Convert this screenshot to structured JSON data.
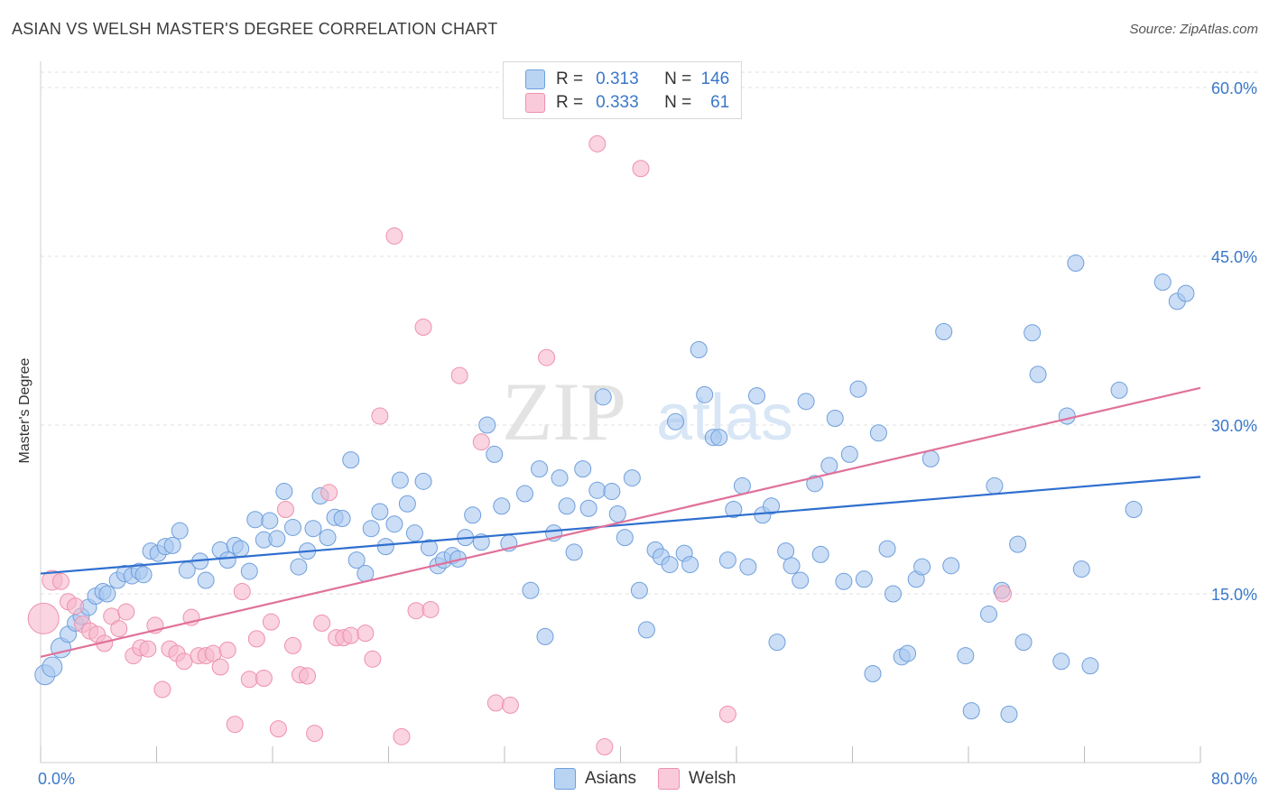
{
  "title": "ASIAN VS WELSH MASTER'S DEGREE CORRELATION CHART",
  "source": "Source: ZipAtlas.com",
  "watermark": {
    "zip": "ZIP",
    "atlas": "atlas"
  },
  "legend": {
    "rows": [
      {
        "r_label": "R =",
        "r_value": "0.313",
        "n_label": "N =",
        "n_value": "146"
      },
      {
        "r_label": "R =",
        "r_value": "0.333",
        "n_label": "N =",
        "n_value": "61"
      }
    ]
  },
  "colors": {
    "asian_fill": "#a9c8f0",
    "asian_stroke": "#6f9fdc",
    "asian_line": "#2f6fcf",
    "welsh_fill": "#f6b8cb",
    "welsh_stroke": "#ee91ae",
    "welsh_line": "#e0719a",
    "axis_text": "#3a78c9",
    "grid": "#e2e2e2"
  },
  "chart_data": {
    "type": "scatter",
    "title": "ASIAN VS WELSH MASTER'S DEGREE CORRELATION CHART",
    "xlabel": "",
    "ylabel": "Master's Degree",
    "xlim": [
      0,
      80
    ],
    "ylim": [
      0,
      60
    ],
    "x_tick_labels": [
      "0.0%",
      "80.0%"
    ],
    "y_tick_labels": [
      "15.0%",
      "30.0%",
      "45.0%",
      "60.0%"
    ],
    "y_ticks": [
      15,
      30,
      45,
      60
    ],
    "grid": true,
    "legend_position": "top-center",
    "series": [
      {
        "name": "Asians",
        "r": 0.313,
        "n": 146,
        "trend": {
          "x": [
            0,
            80
          ],
          "y": [
            16.8,
            25.4
          ]
        },
        "points": [
          [
            0.3,
            7.8
          ],
          [
            0.8,
            8.5
          ],
          [
            1.4,
            10.2
          ],
          [
            1.9,
            11.4
          ],
          [
            2.4,
            12.4
          ],
          [
            2.8,
            13.0
          ],
          [
            3.3,
            13.8
          ],
          [
            3.8,
            14.8
          ],
          [
            4.3,
            15.2
          ],
          [
            4.6,
            15.0
          ],
          [
            5.3,
            16.2
          ],
          [
            5.8,
            16.8
          ],
          [
            6.3,
            16.6
          ],
          [
            6.8,
            17.0
          ],
          [
            7.1,
            16.7
          ],
          [
            7.6,
            18.8
          ],
          [
            8.1,
            18.6
          ],
          [
            8.6,
            19.2
          ],
          [
            9.1,
            19.3
          ],
          [
            9.6,
            20.6
          ],
          [
            10.1,
            17.1
          ],
          [
            11.0,
            17.9
          ],
          [
            11.4,
            16.2
          ],
          [
            12.4,
            18.9
          ],
          [
            12.9,
            18.0
          ],
          [
            13.4,
            19.3
          ],
          [
            13.8,
            19.0
          ],
          [
            14.4,
            17.0
          ],
          [
            14.8,
            21.6
          ],
          [
            15.4,
            19.8
          ],
          [
            15.8,
            21.5
          ],
          [
            16.3,
            19.9
          ],
          [
            16.8,
            24.1
          ],
          [
            17.4,
            20.9
          ],
          [
            17.8,
            17.4
          ],
          [
            18.4,
            18.8
          ],
          [
            18.8,
            20.8
          ],
          [
            19.3,
            23.7
          ],
          [
            19.8,
            20.0
          ],
          [
            20.3,
            21.8
          ],
          [
            20.8,
            21.7
          ],
          [
            21.4,
            26.9
          ],
          [
            21.8,
            18.0
          ],
          [
            22.4,
            16.8
          ],
          [
            22.8,
            20.8
          ],
          [
            23.4,
            22.3
          ],
          [
            23.8,
            19.2
          ],
          [
            24.4,
            21.2
          ],
          [
            24.8,
            25.1
          ],
          [
            25.3,
            23.0
          ],
          [
            25.8,
            20.4
          ],
          [
            26.4,
            25.0
          ],
          [
            26.8,
            19.1
          ],
          [
            27.4,
            17.5
          ],
          [
            27.8,
            18.0
          ],
          [
            28.4,
            18.4
          ],
          [
            28.8,
            18.1
          ],
          [
            29.3,
            20.0
          ],
          [
            29.8,
            22.0
          ],
          [
            30.4,
            19.6
          ],
          [
            30.8,
            30.0
          ],
          [
            31.3,
            27.4
          ],
          [
            31.8,
            22.8
          ],
          [
            32.3,
            19.5
          ],
          [
            33.4,
            23.9
          ],
          [
            33.8,
            15.3
          ],
          [
            34.4,
            26.1
          ],
          [
            34.8,
            11.2
          ],
          [
            35.4,
            20.4
          ],
          [
            35.8,
            25.3
          ],
          [
            36.3,
            22.8
          ],
          [
            36.8,
            18.7
          ],
          [
            37.4,
            26.1
          ],
          [
            37.8,
            22.6
          ],
          [
            38.4,
            24.2
          ],
          [
            38.8,
            32.5
          ],
          [
            39.4,
            24.1
          ],
          [
            39.8,
            22.1
          ],
          [
            40.3,
            20.0
          ],
          [
            40.8,
            25.3
          ],
          [
            41.3,
            15.3
          ],
          [
            41.8,
            11.8
          ],
          [
            42.4,
            18.9
          ],
          [
            42.8,
            18.3
          ],
          [
            43.4,
            17.6
          ],
          [
            43.8,
            30.3
          ],
          [
            44.4,
            18.6
          ],
          [
            44.8,
            17.6
          ],
          [
            45.4,
            36.7
          ],
          [
            45.8,
            32.7
          ],
          [
            46.4,
            28.9
          ],
          [
            46.8,
            28.9
          ],
          [
            47.4,
            18.0
          ],
          [
            47.8,
            22.5
          ],
          [
            48.4,
            24.6
          ],
          [
            48.8,
            17.4
          ],
          [
            49.4,
            32.6
          ],
          [
            49.8,
            22.0
          ],
          [
            50.4,
            22.8
          ],
          [
            50.8,
            10.7
          ],
          [
            51.4,
            18.8
          ],
          [
            51.8,
            17.5
          ],
          [
            52.4,
            16.2
          ],
          [
            52.8,
            32.1
          ],
          [
            53.4,
            24.8
          ],
          [
            53.8,
            18.5
          ],
          [
            54.4,
            26.4
          ],
          [
            54.8,
            30.6
          ],
          [
            55.4,
            16.1
          ],
          [
            55.8,
            27.4
          ],
          [
            56.4,
            33.2
          ],
          [
            56.8,
            16.3
          ],
          [
            57.4,
            7.9
          ],
          [
            57.8,
            29.3
          ],
          [
            58.4,
            19.0
          ],
          [
            58.8,
            15.0
          ],
          [
            59.4,
            9.4
          ],
          [
            59.8,
            9.7
          ],
          [
            60.4,
            16.3
          ],
          [
            60.8,
            17.4
          ],
          [
            61.4,
            27.0
          ],
          [
            62.3,
            38.3
          ],
          [
            62.8,
            17.5
          ],
          [
            63.8,
            9.5
          ],
          [
            64.2,
            4.6
          ],
          [
            65.4,
            13.2
          ],
          [
            65.8,
            24.6
          ],
          [
            66.3,
            15.3
          ],
          [
            66.8,
            4.3
          ],
          [
            67.4,
            19.4
          ],
          [
            67.8,
            10.7
          ],
          [
            68.4,
            38.2
          ],
          [
            68.8,
            34.5
          ],
          [
            70.4,
            9.0
          ],
          [
            70.8,
            30.8
          ],
          [
            71.4,
            44.4
          ],
          [
            71.8,
            17.2
          ],
          [
            72.4,
            8.6
          ],
          [
            74.4,
            33.1
          ],
          [
            75.4,
            22.5
          ],
          [
            77.4,
            42.7
          ],
          [
            78.4,
            41.0
          ],
          [
            79.0,
            41.7
          ]
        ]
      },
      {
        "name": "Welsh",
        "r": 0.333,
        "n": 61,
        "trend": {
          "x": [
            0,
            80
          ],
          "y": [
            9.4,
            33.3
          ]
        },
        "points": [
          [
            0.2,
            12.8
          ],
          [
            0.8,
            16.2
          ],
          [
            1.4,
            16.1
          ],
          [
            1.9,
            14.3
          ],
          [
            2.4,
            13.9
          ],
          [
            2.9,
            12.3
          ],
          [
            3.4,
            11.7
          ],
          [
            3.9,
            11.4
          ],
          [
            4.4,
            10.6
          ],
          [
            4.9,
            13.0
          ],
          [
            5.4,
            11.9
          ],
          [
            5.9,
            13.4
          ],
          [
            6.4,
            9.5
          ],
          [
            6.9,
            10.2
          ],
          [
            7.4,
            10.1
          ],
          [
            7.9,
            12.2
          ],
          [
            8.4,
            6.5
          ],
          [
            8.9,
            10.1
          ],
          [
            9.4,
            9.7
          ],
          [
            9.9,
            9.0
          ],
          [
            10.4,
            12.9
          ],
          [
            10.9,
            9.5
          ],
          [
            11.4,
            9.5
          ],
          [
            11.9,
            9.7
          ],
          [
            12.4,
            8.5
          ],
          [
            12.9,
            10.0
          ],
          [
            13.4,
            3.4
          ],
          [
            13.9,
            15.2
          ],
          [
            14.4,
            7.4
          ],
          [
            14.9,
            11.0
          ],
          [
            15.4,
            7.5
          ],
          [
            15.9,
            12.5
          ],
          [
            16.4,
            3.0
          ],
          [
            16.9,
            22.5
          ],
          [
            17.4,
            10.4
          ],
          [
            17.9,
            7.8
          ],
          [
            18.4,
            7.7
          ],
          [
            18.9,
            2.6
          ],
          [
            19.4,
            12.4
          ],
          [
            19.9,
            24.0
          ],
          [
            20.4,
            11.1
          ],
          [
            20.9,
            11.1
          ],
          [
            21.4,
            11.3
          ],
          [
            22.4,
            11.5
          ],
          [
            22.9,
            9.2
          ],
          [
            23.4,
            30.8
          ],
          [
            24.4,
            46.8
          ],
          [
            24.9,
            2.3
          ],
          [
            25.9,
            13.5
          ],
          [
            26.4,
            38.7
          ],
          [
            26.9,
            13.6
          ],
          [
            28.9,
            34.4
          ],
          [
            30.4,
            28.5
          ],
          [
            31.4,
            5.3
          ],
          [
            32.4,
            5.1
          ],
          [
            34.9,
            36.0
          ],
          [
            38.4,
            55.0
          ],
          [
            38.9,
            1.4
          ],
          [
            41.4,
            52.8
          ],
          [
            47.4,
            4.3
          ],
          [
            66.4,
            15.0
          ]
        ]
      }
    ]
  },
  "bottom_legend": [
    {
      "label": "Asians"
    },
    {
      "label": "Welsh"
    }
  ]
}
